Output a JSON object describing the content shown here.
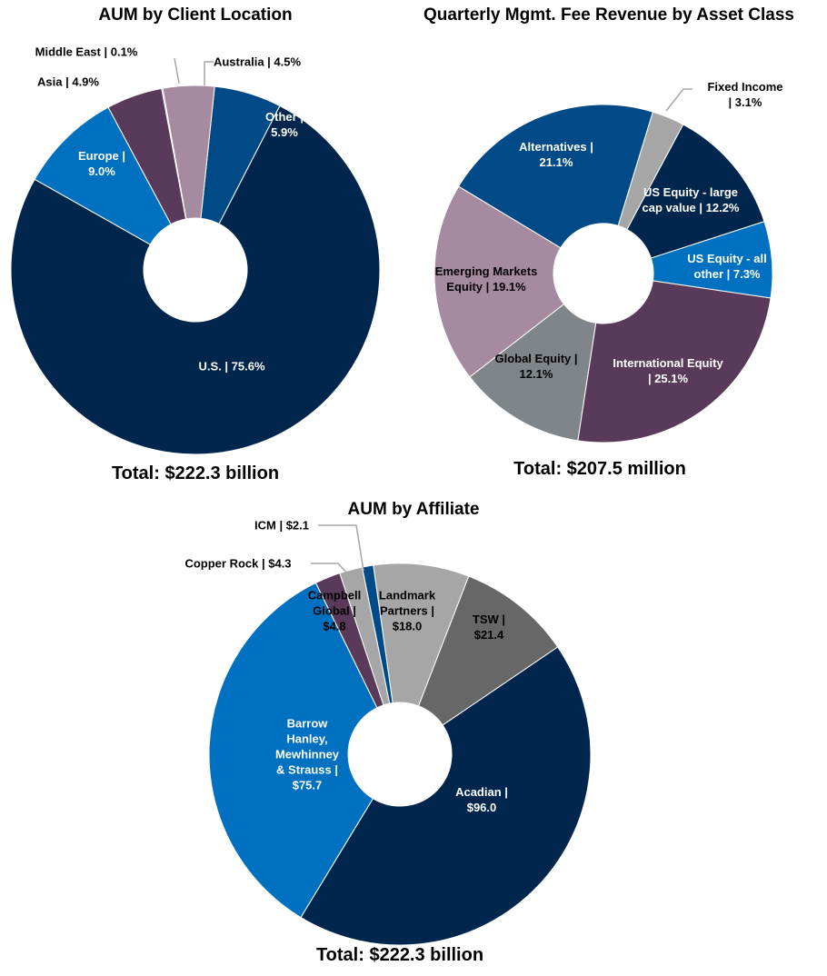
{
  "chart_data": [
    {
      "type": "donut",
      "title": "AUM by Client Location",
      "total": "Total: $222.3 billion",
      "categories": [
        "Other",
        "U.S.",
        "Europe",
        "Asia",
        "Middle East",
        "Australia"
      ],
      "values": [
        5.9,
        75.6,
        9.0,
        4.9,
        0.1,
        4.5
      ],
      "value_labels": [
        "Other |\n5.9%",
        "U.S. | 75.6%",
        "Europe |\n9.0%",
        "Asia | 4.9%",
        "Middle East | 0.1%",
        "Australia | 4.5%"
      ],
      "colors": [
        "#004a87",
        "#00264d",
        "#0070c0",
        "#5a3a5a",
        "#7a5a7a",
        "#a58aa0"
      ]
    },
    {
      "type": "donut",
      "title": "Quarterly Mgmt. Fee Revenue by Asset Class",
      "total": "Total: $207.5 million",
      "categories": [
        "Fixed Income",
        "US Equity - large cap value",
        "US Equity - all other",
        "International Equity",
        "Global Equity",
        "Emerging Markets Equity",
        "Alternatives"
      ],
      "values": [
        3.1,
        12.2,
        7.3,
        25.1,
        12.1,
        19.1,
        21.1
      ],
      "value_labels": [
        "Fixed Income\n| 3.1%",
        "US Equity - large\ncap value | 12.2%",
        "US Equity - all\nother | 7.3%",
        "International Equity\n| 25.1%",
        "Global Equity |\n12.1%",
        "Emerging Markets\nEquity | 19.1%",
        "Alternatives |\n21.1%"
      ],
      "colors": [
        "#a6a6a6",
        "#00264d",
        "#0070c0",
        "#5a3a5a",
        "#7f8589",
        "#a58aa0",
        "#004a87"
      ]
    },
    {
      "type": "donut",
      "title": "AUM by Affiliate",
      "total": "Total: $222.3 billion",
      "categories": [
        "Landmark Partners",
        "TSW",
        "Acadian",
        "Barrow Hanley, Mewhinney & Strauss",
        "Campbell Global",
        "Copper Rock",
        "ICM"
      ],
      "values": [
        18.0,
        21.4,
        96.0,
        75.7,
        4.8,
        4.3,
        2.1
      ],
      "value_labels": [
        "Landmark\nPartners |\n$18.0",
        "TSW |\n$21.4",
        "Acadian |\n$96.0",
        "Barrow\nHanley,\nMewhinney\n& Strauss |\n$75.7",
        "Campbell\nGlobal |\n$4.8",
        "Copper Rock | $4.3",
        "ICM | $2.1"
      ],
      "colors": [
        "#a6a6a6",
        "#676767",
        "#00264d",
        "#0070c0",
        "#5a3a5a",
        "#a6a6a6",
        "#004a87"
      ]
    }
  ]
}
